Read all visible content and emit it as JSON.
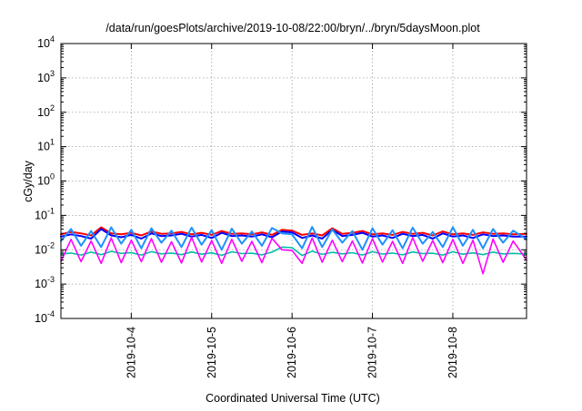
{
  "chart_data": {
    "type": "line",
    "title": "/data/run/goesPlots/archive/2019-10-08/22:00/bryn/../bryn/5daysMoon.plot",
    "xlabel": "Coordinated Universal Time (UTC)",
    "ylabel": "cGy/day",
    "y_scale": "log",
    "ylim": [
      0.0001,
      10000
    ],
    "xlim": [
      "2019-10-03T03:00",
      "2019-10-08T22:00"
    ],
    "x_tick_labels": [
      "2019-10-4",
      "2019-10-5",
      "2019-10-6",
      "2019-10-7",
      "2019-10-8"
    ],
    "y_ticks": [
      {
        "base": "10",
        "exp": "-4",
        "value": 0.0001
      },
      {
        "base": "10",
        "exp": "-3",
        "value": 0.001
      },
      {
        "base": "10",
        "exp": "-2",
        "value": 0.01
      },
      {
        "base": "10",
        "exp": "-1",
        "value": 0.1
      },
      {
        "base": "10",
        "exp": "0",
        "value": 1
      },
      {
        "base": "10",
        "exp": "1",
        "value": 10
      },
      {
        "base": "10",
        "exp": "2",
        "value": 100
      },
      {
        "base": "10",
        "exp": "3",
        "value": 1000
      },
      {
        "base": "10",
        "exp": "4",
        "value": 10000
      }
    ],
    "grid": true,
    "x": [
      "2019-10-03T03:00",
      "2019-10-03T06:00",
      "2019-10-03T09:00",
      "2019-10-03T12:00",
      "2019-10-03T15:00",
      "2019-10-03T18:00",
      "2019-10-03T21:00",
      "2019-10-04T00:00",
      "2019-10-04T03:00",
      "2019-10-04T06:00",
      "2019-10-04T09:00",
      "2019-10-04T12:00",
      "2019-10-04T15:00",
      "2019-10-04T18:00",
      "2019-10-04T21:00",
      "2019-10-05T00:00",
      "2019-10-05T03:00",
      "2019-10-05T06:00",
      "2019-10-05T09:00",
      "2019-10-05T12:00",
      "2019-10-05T15:00",
      "2019-10-05T18:00",
      "2019-10-05T21:00",
      "2019-10-06T00:00",
      "2019-10-06T03:00",
      "2019-10-06T06:00",
      "2019-10-06T09:00",
      "2019-10-06T12:00",
      "2019-10-06T15:00",
      "2019-10-06T18:00",
      "2019-10-06T21:00",
      "2019-10-07T00:00",
      "2019-10-07T03:00",
      "2019-10-07T06:00",
      "2019-10-07T09:00",
      "2019-10-07T12:00",
      "2019-10-07T15:00",
      "2019-10-07T18:00",
      "2019-10-07T21:00",
      "2019-10-08T00:00",
      "2019-10-08T03:00",
      "2019-10-08T06:00",
      "2019-10-08T09:00",
      "2019-10-08T12:00",
      "2019-10-08T15:00",
      "2019-10-08T18:00",
      "2019-10-08T22:00"
    ],
    "series": [
      {
        "color": "#ff0000",
        "values": [
          0.028,
          0.033,
          0.03,
          0.026,
          0.045,
          0.03,
          0.028,
          0.031,
          0.026,
          0.034,
          0.029,
          0.03,
          0.033,
          0.028,
          0.031,
          0.027,
          0.035,
          0.029,
          0.03,
          0.028,
          0.032,
          0.027,
          0.038,
          0.036,
          0.027,
          0.03,
          0.026,
          0.042,
          0.029,
          0.031,
          0.035,
          0.028,
          0.03,
          0.027,
          0.033,
          0.029,
          0.031,
          0.026,
          0.034,
          0.028,
          0.03,
          0.027,
          0.032,
          0.029,
          0.03,
          0.028,
          0.029
        ]
      },
      {
        "color": "#0000ff",
        "values": [
          0.024,
          0.028,
          0.025,
          0.021,
          0.04,
          0.026,
          0.023,
          0.027,
          0.021,
          0.03,
          0.025,
          0.026,
          0.029,
          0.024,
          0.027,
          0.022,
          0.031,
          0.025,
          0.026,
          0.024,
          0.028,
          0.023,
          0.034,
          0.032,
          0.022,
          0.026,
          0.021,
          0.038,
          0.025,
          0.027,
          0.031,
          0.024,
          0.026,
          0.022,
          0.029,
          0.025,
          0.027,
          0.021,
          0.03,
          0.024,
          0.026,
          0.022,
          0.028,
          0.025,
          0.026,
          0.024,
          0.024
        ]
      },
      {
        "color": "#1e90ff",
        "values": [
          0.018,
          0.04,
          0.013,
          0.035,
          0.012,
          0.045,
          0.015,
          0.038,
          0.011,
          0.042,
          0.016,
          0.036,
          0.012,
          0.044,
          0.014,
          0.037,
          0.01,
          0.041,
          0.015,
          0.034,
          0.013,
          0.043,
          0.03,
          0.028,
          0.011,
          0.046,
          0.012,
          0.039,
          0.016,
          0.035,
          0.01,
          0.042,
          0.014,
          0.037,
          0.011,
          0.044,
          0.015,
          0.033,
          0.012,
          0.045,
          0.013,
          0.038,
          0.011,
          0.04,
          0.016,
          0.036,
          0.02
        ]
      },
      {
        "color": "#00bfa5",
        "values": [
          0.0075,
          0.008,
          0.007,
          0.0085,
          0.0072,
          0.009,
          0.0078,
          0.0082,
          0.007,
          0.0088,
          0.0076,
          0.008,
          0.0072,
          0.0086,
          0.0074,
          0.0081,
          0.0069,
          0.0087,
          0.0077,
          0.0079,
          0.0071,
          0.0085,
          0.012,
          0.0115,
          0.0068,
          0.0091,
          0.0073,
          0.0084,
          0.0076,
          0.0082,
          0.007,
          0.0088,
          0.0075,
          0.008,
          0.0071,
          0.0086,
          0.0077,
          0.0079,
          0.007,
          0.0087,
          0.0074,
          0.0081,
          0.0072,
          0.0085,
          0.0076,
          0.0078,
          0.0075
        ]
      },
      {
        "color": "#ff00ff",
        "values": [
          0.0045,
          0.02,
          0.0045,
          0.018,
          0.004,
          0.022,
          0.0042,
          0.019,
          0.0045,
          0.021,
          0.0043,
          0.017,
          0.0041,
          0.023,
          0.0044,
          0.0185,
          0.004,
          0.02,
          0.0046,
          0.0175,
          0.0042,
          0.0215,
          0.01,
          0.0095,
          0.004,
          0.022,
          0.0043,
          0.019,
          0.0045,
          0.018,
          0.0041,
          0.021,
          0.0044,
          0.0175,
          0.004,
          0.0225,
          0.0046,
          0.0185,
          0.0042,
          0.02,
          0.004,
          0.019,
          0.002,
          0.0205,
          0.0043,
          0.018,
          0.005
        ]
      }
    ]
  }
}
